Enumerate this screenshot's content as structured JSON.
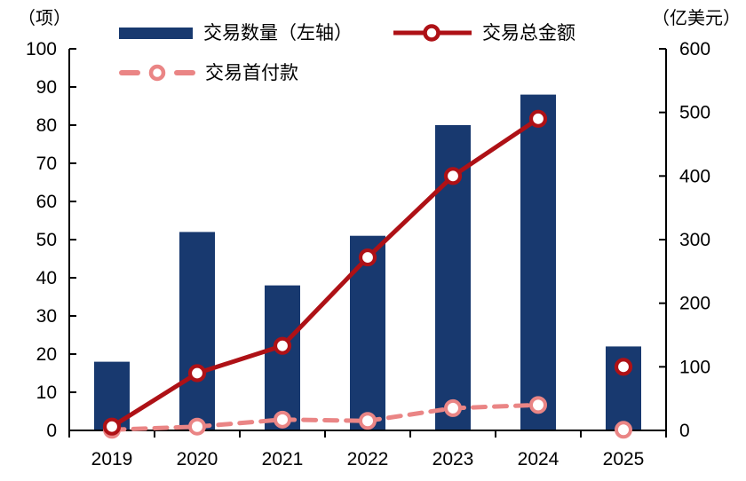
{
  "accent_colors": {
    "bar_blue": "#18396f",
    "line_dark_red": "#ae1116",
    "line_pink": "#ea8585",
    "axis_black": "#000000"
  },
  "legend": {
    "items": [
      {
        "id": "bars",
        "label": "交易数量（左轴）"
      },
      {
        "id": "total",
        "label": "交易总金额"
      },
      {
        "id": "down",
        "label": "交易首付款"
      }
    ]
  },
  "chart_data": {
    "type": "combo",
    "title": "",
    "categories": [
      "2019",
      "2020",
      "2021",
      "2022",
      "2023",
      "2024",
      "2025"
    ],
    "series": [
      {
        "name": "交易数量（左轴）",
        "type": "bar",
        "axis": "left",
        "color": "#18396f",
        "values": [
          18,
          52,
          38,
          51,
          80,
          88,
          22
        ]
      },
      {
        "name": "交易总金额",
        "type": "line",
        "axis": "right",
        "color": "#ae1116",
        "marker": "open-circle",
        "line_through_index": 5,
        "values": [
          6,
          90,
          133,
          272,
          400,
          490,
          100
        ]
      },
      {
        "name": "交易首付款",
        "type": "line-dashed",
        "axis": "right",
        "color": "#ea8585",
        "marker": "open-circle",
        "line_through_index": 5,
        "values": [
          1,
          6,
          17,
          15,
          35,
          40,
          1
        ]
      }
    ],
    "left_axis": {
      "unit": "（项）",
      "min": 0,
      "max": 100,
      "step": 10,
      "tick_labels": [
        "0",
        "10",
        "20",
        "30",
        "40",
        "50",
        "60",
        "70",
        "80",
        "90",
        "100"
      ]
    },
    "right_axis": {
      "unit": "（亿美元）",
      "min": 0,
      "max": 600,
      "step": 100,
      "tick_labels": [
        "0",
        "100",
        "200",
        "300",
        "400",
        "500",
        "600"
      ]
    },
    "grid": false,
    "legend_position": "top"
  }
}
